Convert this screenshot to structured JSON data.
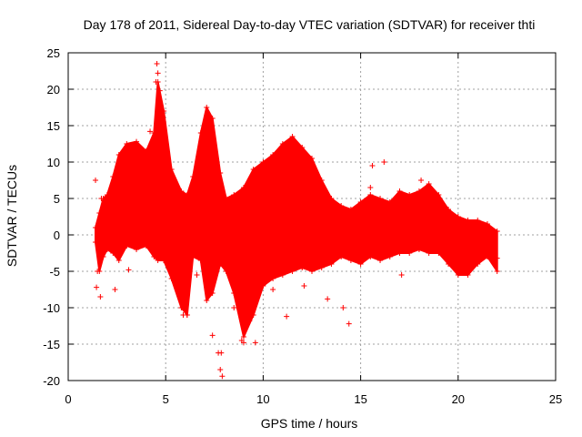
{
  "chart_data": {
    "type": "scatter",
    "title": "Day 178 of 2011, Sidereal Day-to-day VTEC variation (SDTVAR) for receiver thti",
    "xlabel": "GPS time / hours",
    "ylabel": "SDTVAR / TECUs",
    "xlim": [
      0,
      25
    ],
    "ylim": [
      -20,
      25
    ],
    "xticks": [
      0,
      5,
      10,
      15,
      20,
      25
    ],
    "yticks": [
      -20,
      -15,
      -10,
      -5,
      0,
      5,
      10,
      15,
      20,
      25
    ],
    "grid": true,
    "marker": "+",
    "series_color": "#ff0000",
    "envelope": {
      "x": [
        1.4,
        1.6,
        1.8,
        2.0,
        2.3,
        2.6,
        3.0,
        3.5,
        4.0,
        4.4,
        4.6,
        4.9,
        5.3,
        5.8,
        6.1,
        6.4,
        6.8,
        7.1,
        7.4,
        7.8,
        8.1,
        8.5,
        9.0,
        9.5,
        10.0,
        10.5,
        11.0,
        11.5,
        12.0,
        12.5,
        13.0,
        13.5,
        14.0,
        14.5,
        15.0,
        15.5,
        16.0,
        16.5,
        17.0,
        17.5,
        18.0,
        18.5,
        19.0,
        19.5,
        20.0,
        20.5,
        21.0,
        21.5,
        22.0
      ],
      "upper": [
        1.0,
        3.0,
        5.0,
        5.5,
        8.0,
        11.0,
        12.5,
        12.8,
        11.5,
        14.0,
        21.0,
        17.0,
        9.0,
        6.0,
        5.5,
        8.0,
        14.0,
        17.5,
        16.0,
        8.5,
        5.0,
        5.5,
        6.5,
        9.0,
        10.0,
        11.0,
        12.5,
        13.5,
        12.0,
        10.5,
        7.5,
        5.0,
        4.0,
        3.5,
        4.5,
        5.5,
        5.0,
        4.5,
        6.0,
        5.5,
        6.0,
        7.0,
        5.5,
        3.5,
        2.5,
        2.0,
        2.0,
        1.5,
        0.5
      ],
      "lower": [
        -1.0,
        -5.0,
        -3.0,
        -2.0,
        -2.5,
        -3.5,
        -1.5,
        -2.0,
        -1.5,
        -3.0,
        -3.5,
        -3.5,
        -6.0,
        -10.0,
        -11.0,
        -3.0,
        -3.5,
        -9.0,
        -8.0,
        -4.0,
        -5.0,
        -8.0,
        -14.0,
        -11.0,
        -7.0,
        -6.0,
        -5.5,
        -5.0,
        -4.5,
        -5.0,
        -4.5,
        -4.0,
        -3.0,
        -3.5,
        -4.0,
        -3.0,
        -3.5,
        -3.0,
        -2.5,
        -2.5,
        -2.0,
        -2.5,
        -2.5,
        -4.0,
        -5.5,
        -5.5,
        -4.0,
        -3.0,
        -5.0
      ]
    },
    "outliers": [
      {
        "x": 1.4,
        "y": 7.5
      },
      {
        "x": 1.45,
        "y": -7.2
      },
      {
        "x": 1.5,
        "y": -5.0
      },
      {
        "x": 1.65,
        "y": -8.5
      },
      {
        "x": 1.7,
        "y": 5.0
      },
      {
        "x": 1.8,
        "y": 2.5
      },
      {
        "x": 2.4,
        "y": -7.5
      },
      {
        "x": 3.1,
        "y": -4.8
      },
      {
        "x": 4.55,
        "y": 23.5
      },
      {
        "x": 4.6,
        "y": 22.2
      },
      {
        "x": 4.5,
        "y": 21.0
      },
      {
        "x": 4.7,
        "y": 19.8
      },
      {
        "x": 4.2,
        "y": 14.2
      },
      {
        "x": 4.8,
        "y": 16.0
      },
      {
        "x": 5.9,
        "y": -11.0
      },
      {
        "x": 6.1,
        "y": -11.0
      },
      {
        "x": 7.4,
        "y": -13.8
      },
      {
        "x": 7.7,
        "y": -16.2
      },
      {
        "x": 7.8,
        "y": -18.5
      },
      {
        "x": 7.9,
        "y": -19.4
      },
      {
        "x": 7.85,
        "y": -16.2
      },
      {
        "x": 8.5,
        "y": -10.0
      },
      {
        "x": 8.9,
        "y": -14.5
      },
      {
        "x": 9.0,
        "y": -14.8
      },
      {
        "x": 9.1,
        "y": -12.5
      },
      {
        "x": 9.3,
        "y": -11.8
      },
      {
        "x": 9.6,
        "y": -14.8
      },
      {
        "x": 11.2,
        "y": -11.2
      },
      {
        "x": 14.4,
        "y": -12.2
      },
      {
        "x": 13.3,
        "y": -8.8
      },
      {
        "x": 14.1,
        "y": -10.0
      },
      {
        "x": 15.5,
        "y": 6.5
      },
      {
        "x": 15.6,
        "y": 9.5
      },
      {
        "x": 16.2,
        "y": 10.0
      },
      {
        "x": 17.1,
        "y": -5.5
      },
      {
        "x": 18.1,
        "y": 7.5
      },
      {
        "x": 22.0,
        "y": -3.2
      },
      {
        "x": 12.1,
        "y": -7.0
      },
      {
        "x": 10.5,
        "y": -7.5
      },
      {
        "x": 6.6,
        "y": -5.5
      }
    ]
  }
}
